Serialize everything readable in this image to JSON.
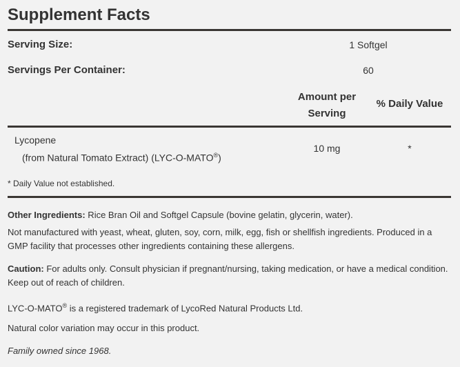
{
  "title": "Supplement Facts",
  "serving_size": {
    "label": "Serving Size:",
    "value": "1 Softgel"
  },
  "servings_per_container": {
    "label": "Servings Per Container:",
    "value": "60"
  },
  "columns": {
    "amount": "Amount per Serving",
    "dv": "% Daily Value"
  },
  "ingredients": [
    {
      "name": "Lycopene",
      "detail": "(from Natural Tomato Extract) (LYC-O-MATO",
      "detail_mark": "®",
      "detail_end": ")",
      "amount": "10 mg",
      "dv": "*"
    }
  ],
  "footnote": "* Daily Value not established.",
  "other_ingredients": {
    "label": "Other Ingredients:",
    "text": " Rice Bran Oil and Softgel Capsule (bovine gelatin, glycerin, water)."
  },
  "allergen": "Not manufactured with yeast, wheat, gluten, soy, corn, milk, egg, fish or shellfish ingredients. Produced in a GMP facility that processes other ingredients containing these allergens.",
  "caution": {
    "label": "Caution:",
    "text": " For adults only. Consult physician if pregnant/nursing, taking medication, or have a medical condition. Keep out of reach of children."
  },
  "trademark": {
    "name": "LYC-O-MATO",
    "mark": "®",
    "text": " is a registered trademark of LycoRed Natural Products Ltd."
  },
  "color_note": "Natural color variation may occur in this product.",
  "family": "Family owned since 1968."
}
